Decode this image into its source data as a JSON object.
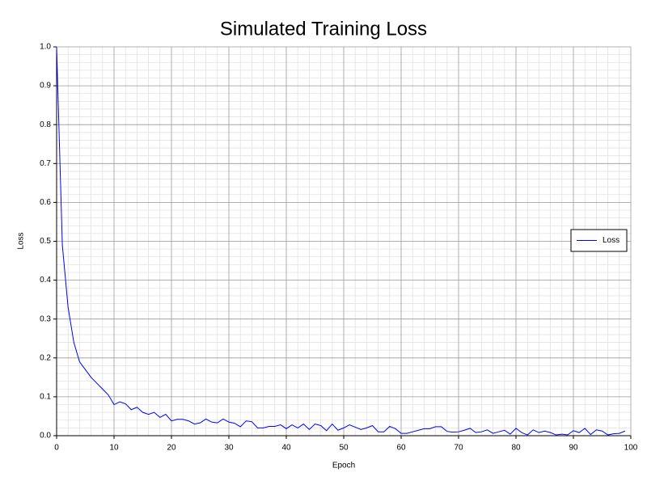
{
  "chart_data": {
    "type": "line",
    "title": "Simulated Training Loss",
    "x_label": "Epoch",
    "y_label": "Loss",
    "x": [
      0,
      1,
      2,
      3,
      4,
      5,
      6,
      7,
      8,
      9,
      10,
      11,
      12,
      13,
      14,
      15,
      16,
      17,
      18,
      19,
      20,
      21,
      22,
      23,
      24,
      25,
      26,
      27,
      28,
      29,
      30,
      31,
      32,
      33,
      34,
      35,
      36,
      37,
      38,
      39,
      40,
      41,
      42,
      43,
      44,
      45,
      46,
      47,
      48,
      49,
      50,
      51,
      52,
      53,
      54,
      55,
      56,
      57,
      58,
      59,
      60,
      61,
      62,
      63,
      64,
      65,
      66,
      67,
      68,
      69,
      70,
      71,
      72,
      73,
      74,
      75,
      76,
      77,
      78,
      79,
      80,
      81,
      82,
      83,
      84,
      85,
      86,
      87,
      88,
      89,
      90,
      91,
      92,
      93,
      94,
      95,
      96,
      97,
      98,
      99
    ],
    "series": [
      {
        "name": "Loss",
        "color": "#0000ff",
        "values": [
          1.0,
          0.49,
          0.33,
          0.24,
          0.19,
          0.17,
          0.15,
          0.135,
          0.12,
          0.105,
          0.08,
          0.087,
          0.082,
          0.067,
          0.073,
          0.06,
          0.055,
          0.06,
          0.047,
          0.055,
          0.038,
          0.042,
          0.042,
          0.038,
          0.03,
          0.033,
          0.043,
          0.035,
          0.033,
          0.043,
          0.035,
          0.032,
          0.023,
          0.038,
          0.036,
          0.02,
          0.02,
          0.024,
          0.024,
          0.028,
          0.018,
          0.028,
          0.02,
          0.03,
          0.016,
          0.03,
          0.026,
          0.013,
          0.03,
          0.014,
          0.02,
          0.028,
          0.022,
          0.016,
          0.02,
          0.026,
          0.01,
          0.01,
          0.024,
          0.018,
          0.006,
          0.006,
          0.01,
          0.014,
          0.018,
          0.018,
          0.023,
          0.023,
          0.011,
          0.009,
          0.01,
          0.014,
          0.019,
          0.008,
          0.01,
          0.015,
          0.006,
          0.01,
          0.014,
          0.004,
          0.019,
          0.008,
          0.002,
          0.015,
          0.008,
          0.012,
          0.008,
          0.002,
          0.004,
          0.002,
          0.013,
          0.008,
          0.019,
          0.003,
          0.015,
          0.012,
          0.002,
          0.005,
          0.006,
          0.012
        ]
      }
    ],
    "xlim": [
      0,
      100
    ],
    "xticks": [
      0,
      10,
      20,
      30,
      40,
      50,
      60,
      70,
      80,
      90,
      100
    ],
    "ylim": [
      0,
      1
    ],
    "yticks": [
      {
        "value": 0,
        "label": "0.0"
      },
      0.1,
      0.2,
      0.3,
      0.4,
      0.5,
      0.6,
      0.7,
      0.8,
      0.9,
      {
        "value": 1,
        "label": "1.0"
      }
    ],
    "grid": true,
    "minor_divisions": 5,
    "legend": "right"
  }
}
